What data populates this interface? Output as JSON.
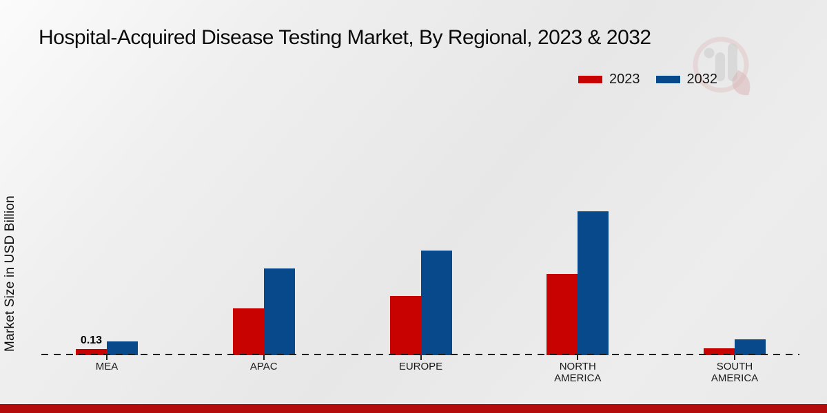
{
  "page": {
    "footer_bar_color": "#b40c0c",
    "accent_red": "#c80101",
    "accent_blue": "#07498a"
  },
  "chart_data": {
    "type": "bar",
    "title": "Hospital-Acquired Disease Testing Market, By Regional, 2023 & 2032",
    "xlabel": "",
    "ylabel": "Market Size in USD Billion",
    "categories": [
      "MEA",
      "APAC",
      "EUROPE",
      "NORTH AMERICA",
      "SOUTH AMERICA"
    ],
    "series": [
      {
        "name": "2023",
        "color": "#c80101",
        "values": [
          0.13,
          0.98,
          1.23,
          1.7,
          0.14
        ],
        "data_labels": [
          "0.13",
          "",
          "",
          "",
          ""
        ]
      },
      {
        "name": "2032",
        "color": "#07498a",
        "values": [
          0.29,
          1.81,
          2.18,
          3.0,
          0.33
        ],
        "data_labels": [
          "",
          "",
          "",
          "",
          ""
        ]
      }
    ],
    "ylim": [
      0,
      3.3
    ],
    "grid": false,
    "legend_position": "top-right",
    "baseline_style": "dashed",
    "watermark_icon": "market-research-future-logo"
  }
}
